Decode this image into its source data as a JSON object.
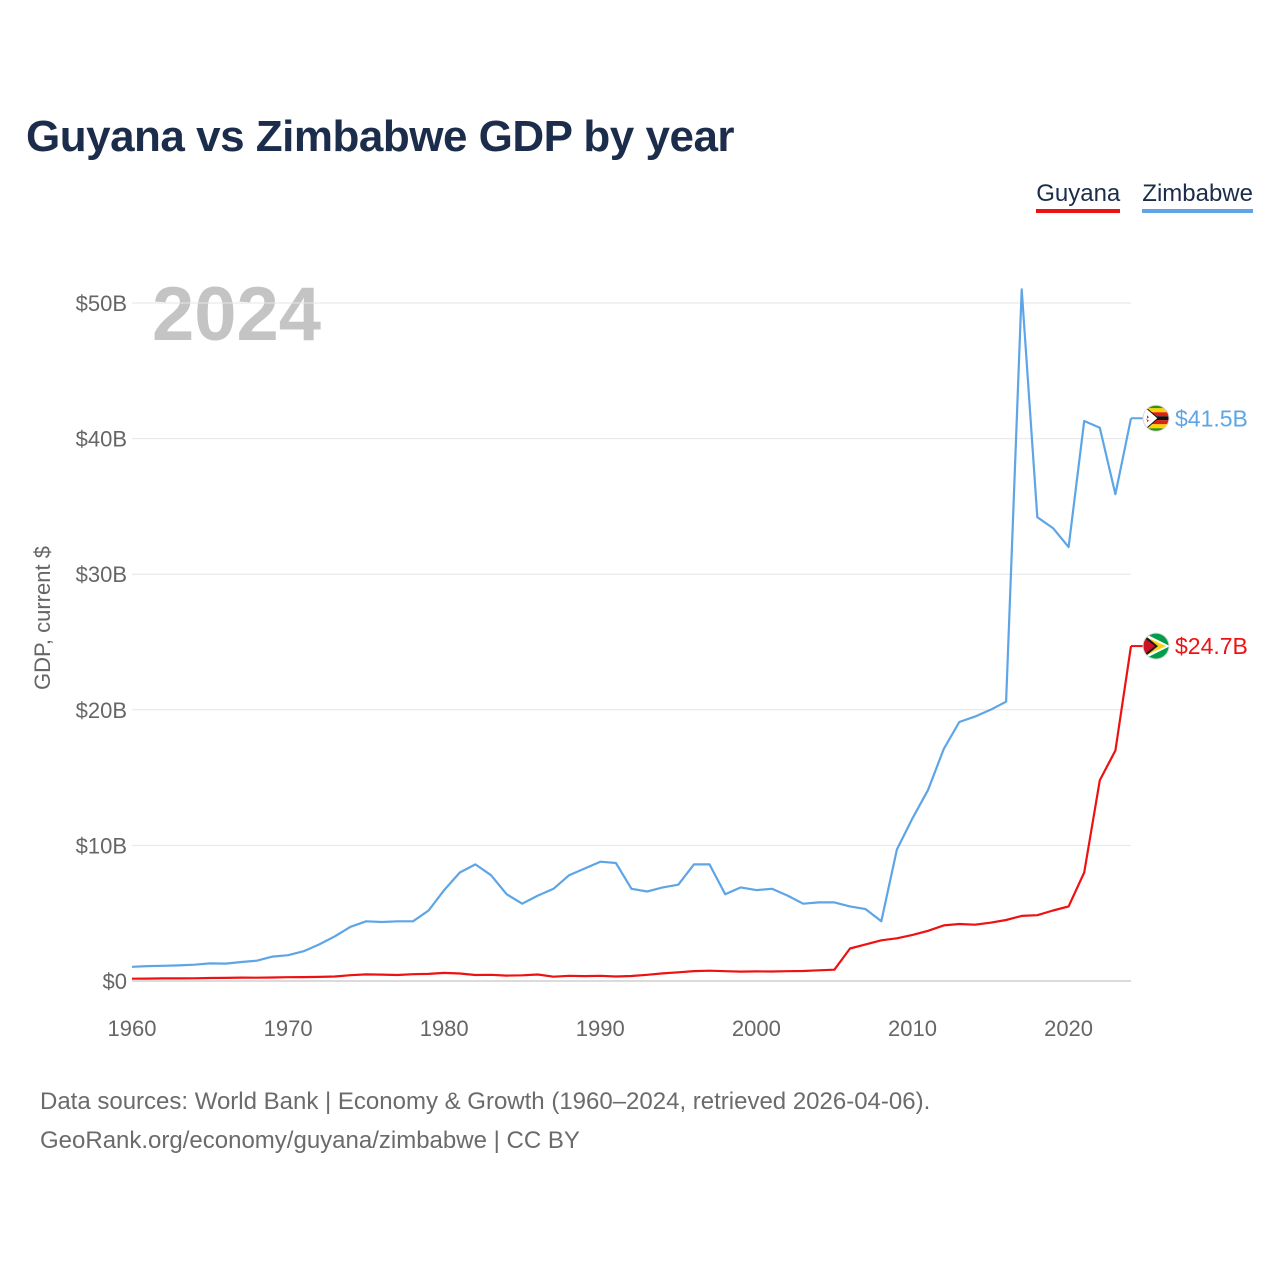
{
  "chart_data": {
    "type": "line",
    "title": "Guyana vs Zimbabwe GDP by year",
    "ylabel": "GDP, current $",
    "xlabel": "",
    "year_label": "2024",
    "xlim": [
      1960,
      2024
    ],
    "ylim": [
      0,
      50
    ],
    "unit": "billion USD",
    "x_ticks": [
      1960,
      1970,
      1980,
      1990,
      2000,
      2010,
      2020
    ],
    "y_ticks": [
      0,
      10,
      20,
      30,
      40,
      50
    ],
    "y_tick_labels": [
      "$0",
      "$10B",
      "$20B",
      "$30B",
      "$40B",
      "$50B"
    ],
    "grid": true,
    "legend_position": "top-right",
    "x": [
      1960,
      1961,
      1962,
      1963,
      1964,
      1965,
      1966,
      1967,
      1968,
      1969,
      1970,
      1971,
      1972,
      1973,
      1974,
      1975,
      1976,
      1977,
      1978,
      1979,
      1980,
      1981,
      1982,
      1983,
      1984,
      1985,
      1986,
      1987,
      1988,
      1989,
      1990,
      1991,
      1992,
      1993,
      1994,
      1995,
      1996,
      1997,
      1998,
      1999,
      2000,
      2001,
      2002,
      2003,
      2004,
      2005,
      2006,
      2007,
      2008,
      2009,
      2010,
      2011,
      2012,
      2013,
      2014,
      2015,
      2016,
      2017,
      2018,
      2019,
      2020,
      2021,
      2022,
      2023,
      2024
    ],
    "series": [
      {
        "name": "Guyana",
        "color": "#ee1111",
        "end_label": "$24.7B",
        "flag": "guyana-flag",
        "values": [
          0.17,
          0.18,
          0.19,
          0.19,
          0.2,
          0.22,
          0.23,
          0.25,
          0.24,
          0.26,
          0.28,
          0.29,
          0.3,
          0.33,
          0.43,
          0.49,
          0.47,
          0.44,
          0.5,
          0.52,
          0.6,
          0.55,
          0.44,
          0.46,
          0.4,
          0.42,
          0.48,
          0.32,
          0.38,
          0.36,
          0.38,
          0.33,
          0.37,
          0.46,
          0.56,
          0.64,
          0.73,
          0.76,
          0.72,
          0.69,
          0.71,
          0.7,
          0.72,
          0.74,
          0.79,
          0.83,
          2.4,
          2.7,
          3.0,
          3.15,
          3.4,
          3.7,
          4.1,
          4.2,
          4.15,
          4.3,
          4.5,
          4.8,
          4.85,
          5.2,
          5.5,
          8.0,
          14.8,
          17.0,
          24.7
        ]
      },
      {
        "name": "Zimbabwe",
        "color": "#5da5e6",
        "end_label": "$41.5B",
        "flag": "zimbabwe-flag",
        "values": [
          1.05,
          1.1,
          1.12,
          1.15,
          1.2,
          1.3,
          1.28,
          1.4,
          1.5,
          1.8,
          1.9,
          2.2,
          2.7,
          3.3,
          4.0,
          4.4,
          4.35,
          4.4,
          4.4,
          5.2,
          6.7,
          8.0,
          8.6,
          7.8,
          6.4,
          5.7,
          6.3,
          6.8,
          7.8,
          8.3,
          8.8,
          8.7,
          6.8,
          6.6,
          6.9,
          7.1,
          8.6,
          8.6,
          6.4,
          6.9,
          6.7,
          6.8,
          6.3,
          5.7,
          5.8,
          5.8,
          5.5,
          5.3,
          4.4,
          9.7,
          12.0,
          14.1,
          17.1,
          19.1,
          19.5,
          20.0,
          20.6,
          51.0,
          34.2,
          33.4,
          32.0,
          41.3,
          40.8,
          35.9,
          41.5
        ]
      }
    ]
  },
  "footer": {
    "line1": "Data sources: World Bank | Economy & Growth (1960–2024, retrieved 2026-04-06).",
    "line2": "GeoRank.org/economy/guyana/zimbabwe | CC BY"
  }
}
